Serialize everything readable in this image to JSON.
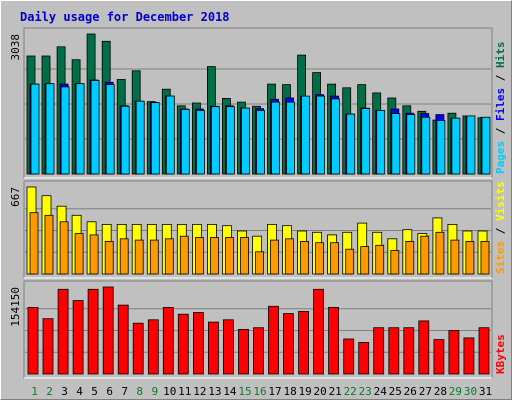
{
  "colors": {
    "title": "#0000cc",
    "hits": "#006f46",
    "files": "#0000ff",
    "pages": "#00ccff",
    "visits": "#ffff00",
    "sites": "#ff9900",
    "kbytes": "#ff0000",
    "weekend_label": "#0a7a2a",
    "weekday_label": "#000000",
    "panel": "#c0c0c0"
  },
  "chart_data": {
    "type": "bar",
    "title": "Daily usage for December 2018",
    "categories": [
      "1",
      "2",
      "3",
      "4",
      "5",
      "6",
      "7",
      "8",
      "9",
      "10",
      "11",
      "12",
      "13",
      "14",
      "15",
      "16",
      "17",
      "18",
      "19",
      "20",
      "21",
      "22",
      "23",
      "24",
      "25",
      "26",
      "27",
      "28",
      "29",
      "30",
      "31"
    ],
    "weekend_days": [
      "1",
      "2",
      "8",
      "9",
      "15",
      "16",
      "22",
      "23",
      "29",
      "30"
    ],
    "panels": [
      {
        "id": "top",
        "max_label": "3038",
        "ymax": 3038,
        "legend": [
          {
            "text": "Pages",
            "color": "#00ccff"
          },
          {
            "text": " / ",
            "color": "#000000"
          },
          {
            "text": "Files",
            "color": "#0000ff"
          },
          {
            "text": " / ",
            "color": "#000000"
          },
          {
            "text": "Hits",
            "color": "#006f46"
          }
        ],
        "series": [
          {
            "name": "Hits",
            "color": "#006f46",
            "values": [
              2560,
              2560,
              2760,
              2480,
              3038,
              2880,
              2050,
              2240,
              1570,
              1840,
              1480,
              1540,
              2330,
              1640,
              1560,
              1470,
              1950,
              1940,
              2580,
              2200,
              1950,
              1870,
              1940,
              1760,
              1650,
              1480,
              1360,
              1170,
              1320,
              1260,
              1220
            ]
          },
          {
            "name": "Files",
            "color": "#0000ff",
            "values": [
              1950,
              1960,
              1950,
              1960,
              2040,
              1990,
              1480,
              1580,
              1550,
              1690,
              1410,
              1410,
              1470,
              1480,
              1430,
              1420,
              1620,
              1650,
              1680,
              1720,
              1690,
              1300,
              1430,
              1380,
              1410,
              1320,
              1310,
              1290,
              1210,
              1240,
              1230
            ]
          },
          {
            "name": "Pages",
            "color": "#00ccff",
            "values": [
              1950,
              1960,
              1890,
              1960,
              2030,
              1940,
              1470,
              1580,
              1550,
              1690,
              1400,
              1380,
              1460,
              1460,
              1430,
              1380,
              1560,
              1560,
              1690,
              1690,
              1630,
              1300,
              1420,
              1380,
              1310,
              1290,
              1230,
              1160,
              1210,
              1260,
              1230
            ]
          }
        ]
      },
      {
        "id": "middle",
        "max_label": "667",
        "ymax": 667,
        "legend": [
          {
            "text": "Sites",
            "color": "#ff9900"
          },
          {
            "text": " / ",
            "color": "#000000"
          },
          {
            "text": "Visits",
            "color": "#ffff00"
          }
        ],
        "series": [
          {
            "name": "Visits",
            "color": "#ffff00",
            "values": [
              667,
              600,
              520,
              450,
              400,
              380,
              380,
              380,
              380,
              380,
              380,
              380,
              380,
              370,
              330,
              290,
              380,
              370,
              330,
              320,
              300,
              320,
              390,
              320,
              270,
              340,
              310,
              430,
              380,
              330,
              330
            ]
          },
          {
            "name": "Sites",
            "color": "#ff9900",
            "values": [
              470,
              450,
              400,
              310,
              300,
              250,
              270,
              260,
              260,
              270,
              290,
              280,
              280,
              280,
              280,
              170,
              260,
              270,
              250,
              240,
              240,
              190,
              210,
              220,
              180,
              250,
              290,
              320,
              260,
              250,
              250
            ]
          }
        ]
      },
      {
        "id": "bottom",
        "max_label": "154150",
        "ymax": 154150,
        "legend": [
          {
            "text": "KBytes",
            "color": "#ff0000"
          }
        ],
        "series": [
          {
            "name": "KBytes",
            "color": "#ff0000",
            "values": [
              118000,
              98000,
              150000,
              130000,
              150000,
              154150,
              122000,
              90000,
              96000,
              118000,
              106000,
              109000,
              92000,
              96000,
              79000,
              82000,
              120000,
              107000,
              111000,
              150000,
              118000,
              62000,
              56000,
              82000,
              82000,
              82000,
              94000,
              61000,
              77000,
              64000,
              82000
            ]
          }
        ]
      }
    ]
  }
}
